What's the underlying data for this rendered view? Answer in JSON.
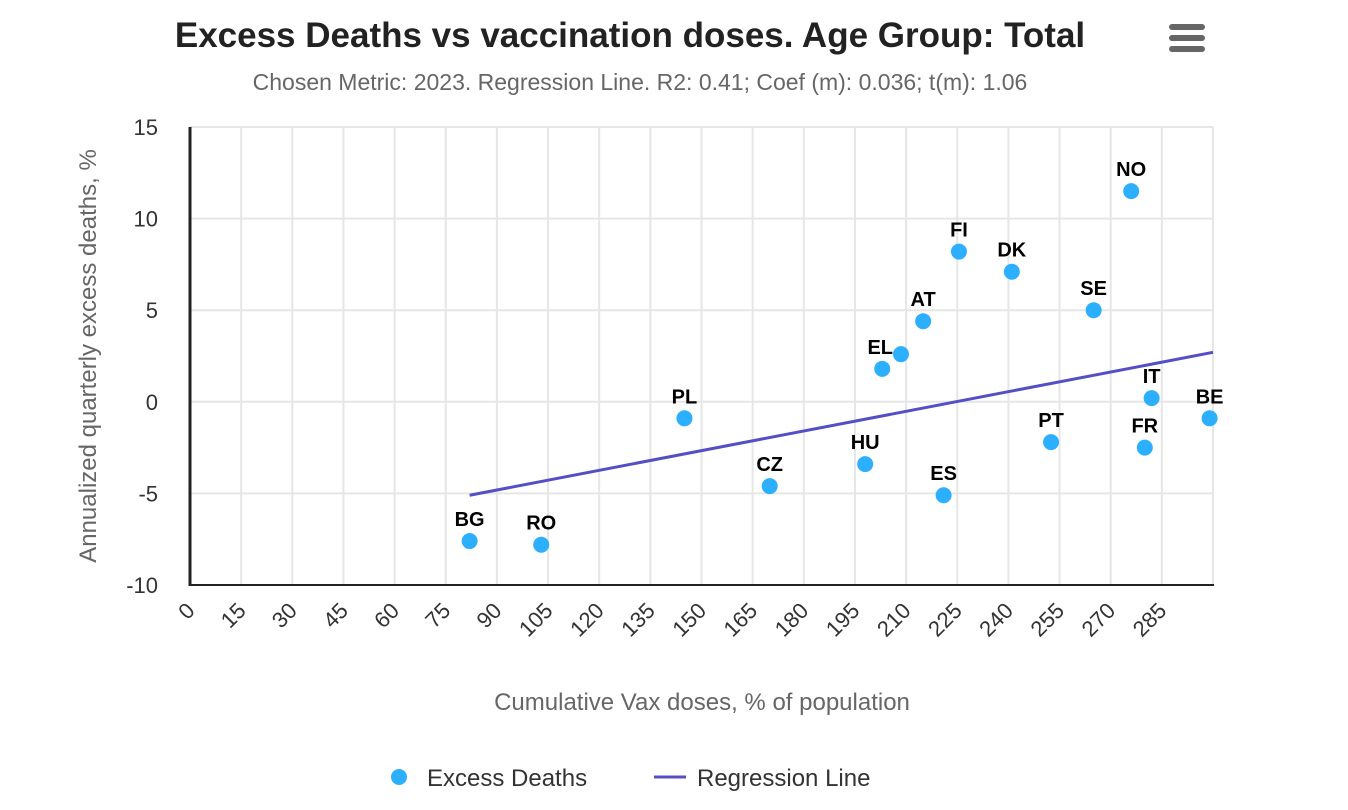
{
  "chart_data": {
    "type": "scatter",
    "title": "Excess Deaths vs vaccination doses. Age Group: Total",
    "subtitle": "Chosen Metric: 2023. Regression Line. R2: 0.41; Coef (m): 0.036; t(m): 1.06",
    "xlabel": "Cumulative Vax doses, % of population",
    "ylabel": "Annualized quarterly excess deaths, %",
    "xlim": [
      0,
      300
    ],
    "ylim": [
      -10,
      15
    ],
    "x_ticks": [
      0,
      15,
      30,
      45,
      60,
      75,
      90,
      105,
      120,
      135,
      150,
      165,
      180,
      195,
      210,
      225,
      240,
      255,
      270,
      285
    ],
    "y_ticks": [
      -10,
      -5,
      0,
      5,
      10,
      15
    ],
    "grid": true,
    "legend_position": "bottom",
    "series": [
      {
        "name": "Excess Deaths",
        "color": "#2caffe",
        "points": [
          {
            "label": "BG",
            "x": 82,
            "y": -7.6
          },
          {
            "label": "RO",
            "x": 103,
            "y": -7.8
          },
          {
            "label": "PL",
            "x": 145,
            "y": -0.9
          },
          {
            "label": "CZ",
            "x": 170,
            "y": -4.6
          },
          {
            "label": "HU",
            "x": 198,
            "y": -3.4
          },
          {
            "label": "EL",
            "x": 203,
            "y": 1.8
          },
          {
            "label": "",
            "x": 208.5,
            "y": 2.6
          },
          {
            "label": "AT",
            "x": 215,
            "y": 4.4
          },
          {
            "label": "ES",
            "x": 221,
            "y": -5.1
          },
          {
            "label": "FI",
            "x": 225.5,
            "y": 8.2
          },
          {
            "label": "DK",
            "x": 241,
            "y": 7.1
          },
          {
            "label": "PT",
            "x": 252.5,
            "y": -2.2
          },
          {
            "label": "SE",
            "x": 265,
            "y": 5.0
          },
          {
            "label": "NO",
            "x": 276,
            "y": 11.5
          },
          {
            "label": "IT",
            "x": 282,
            "y": 0.2
          },
          {
            "label": "FR",
            "x": 280,
            "y": -2.5
          },
          {
            "label": "BE",
            "x": 299,
            "y": -0.9
          }
        ]
      },
      {
        "name": "Regression Line",
        "color": "#544fc5",
        "points": [
          {
            "x": 82,
            "y": -5.1
          },
          {
            "x": 300,
            "y": 2.7
          }
        ]
      }
    ]
  }
}
